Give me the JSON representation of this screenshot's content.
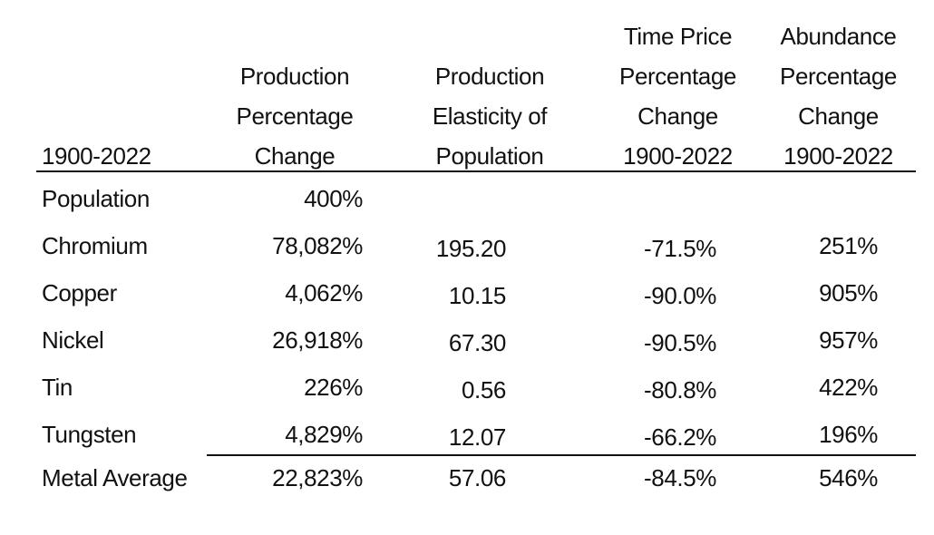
{
  "table": {
    "headers": {
      "period": "1900-2022",
      "production_change": [
        "Production",
        "Percentage",
        "Change"
      ],
      "elasticity": [
        "Production",
        "Elasticity of",
        "Population"
      ],
      "time_price": [
        "Time Price",
        "Percentage",
        "Change",
        "1900-2022"
      ],
      "abundance": [
        "Abundance",
        "Percentage",
        "Change",
        "1900-2022"
      ]
    },
    "rows": [
      {
        "label": "Population",
        "production_change": "400%",
        "elasticity": "",
        "time_price": "",
        "abundance": ""
      },
      {
        "label": "Chromium",
        "production_change": "78,082%",
        "elasticity": "195.20",
        "time_price": "-71.5%",
        "abundance": "251%"
      },
      {
        "label": "Copper",
        "production_change": "4,062%",
        "elasticity": "10.15",
        "time_price": "-90.0%",
        "abundance": "905%"
      },
      {
        "label": "Nickel",
        "production_change": "26,918%",
        "elasticity": "67.30",
        "time_price": "-90.5%",
        "abundance": "957%"
      },
      {
        "label": "Tin",
        "production_change": "226%",
        "elasticity": "0.56",
        "time_price": "-80.8%",
        "abundance": "422%"
      },
      {
        "label": "Tungsten",
        "production_change": "4,829%",
        "elasticity": "12.07",
        "time_price": "-66.2%",
        "abundance": "196%"
      }
    ],
    "summary": {
      "label": "Metal Average",
      "production_change": "22,823%",
      "elasticity": "57.06",
      "time_price": "-84.5%",
      "abundance": "546%"
    }
  }
}
